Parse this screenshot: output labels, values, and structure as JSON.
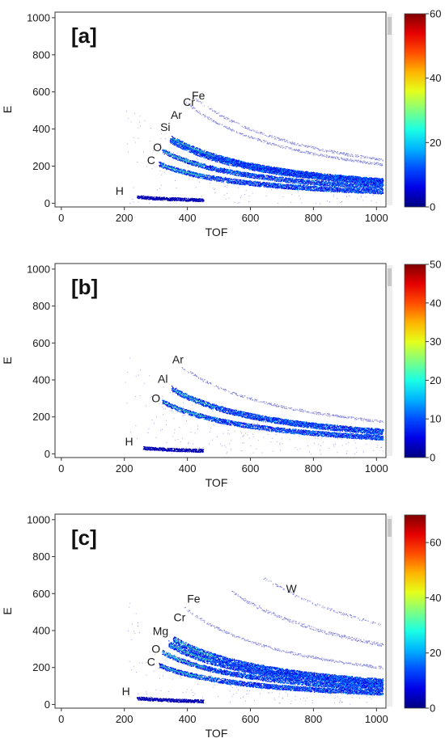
{
  "chart_data": [
    {
      "type": "heatmap",
      "panel_label": "[a]",
      "xlabel": "TOF",
      "ylabel": "E",
      "xlim": [
        -20,
        1030
      ],
      "ylim": [
        -20,
        1030
      ],
      "x_ticks": [
        0,
        200,
        400,
        600,
        800,
        1000
      ],
      "y_ticks": [
        0,
        200,
        400,
        600,
        800,
        1000
      ],
      "colorbar": {
        "min": 0,
        "max": 60,
        "ticks": [
          0,
          20,
          40,
          60
        ]
      },
      "element_labels": [
        {
          "text": "H",
          "x": 185,
          "y": 45
        },
        {
          "text": "C",
          "x": 285,
          "y": 210
        },
        {
          "text": "O",
          "x": 305,
          "y": 280
        },
        {
          "text": "Si",
          "x": 330,
          "y": 390
        },
        {
          "text": "Ar",
          "x": 365,
          "y": 455
        },
        {
          "text": "Cr",
          "x": 405,
          "y": 525
        },
        {
          "text": "Fe",
          "x": 435,
          "y": 560
        }
      ],
      "tracks": [
        {
          "c": 8500,
          "x0": 240,
          "x1": 450,
          "w": 4,
          "d": 1.0
        },
        {
          "c": 66000,
          "x0": 310,
          "x1": 1020,
          "w": 6,
          "d": 1.3
        },
        {
          "c": 91000,
          "x0": 320,
          "x1": 1020,
          "w": 6,
          "d": 1.3
        },
        {
          "c": 118000,
          "x0": 345,
          "x1": 1020,
          "w": 7,
          "d": 1.8
        },
        {
          "c": 123000,
          "x0": 350,
          "x1": 1020,
          "w": 7,
          "d": 1.8
        },
        {
          "c": 215000,
          "x0": 390,
          "x1": 1020,
          "w": 3,
          "d": 0.35
        },
        {
          "c": 240000,
          "x0": 420,
          "x1": 1020,
          "w": 3,
          "d": 0.35
        }
      ]
    },
    {
      "type": "heatmap",
      "panel_label": "[b]",
      "xlabel": "TOF",
      "ylabel": "E",
      "xlim": [
        -20,
        1030
      ],
      "ylim": [
        -20,
        1030
      ],
      "x_ticks": [
        0,
        200,
        400,
        600,
        800,
        1000
      ],
      "y_ticks": [
        0,
        200,
        400,
        600,
        800,
        1000
      ],
      "colorbar": {
        "min": 0,
        "max": 50,
        "ticks": [
          0,
          10,
          20,
          30,
          40,
          50
        ]
      },
      "element_labels": [
        {
          "text": "H",
          "x": 215,
          "y": 45
        },
        {
          "text": "O",
          "x": 300,
          "y": 280
        },
        {
          "text": "Al",
          "x": 322,
          "y": 385
        },
        {
          "text": "Ar",
          "x": 370,
          "y": 490
        }
      ],
      "tracks": [
        {
          "c": 8500,
          "x0": 260,
          "x1": 450,
          "w": 4,
          "d": 1.0
        },
        {
          "c": 91000,
          "x0": 320,
          "x1": 1020,
          "w": 6,
          "d": 1.4
        },
        {
          "c": 124000,
          "x0": 350,
          "x1": 1020,
          "w": 7,
          "d": 1.9
        },
        {
          "c": 180000,
          "x0": 380,
          "x1": 1020,
          "w": 3,
          "d": 0.3
        }
      ]
    },
    {
      "type": "heatmap",
      "panel_label": "[c]",
      "xlabel": "TOF",
      "ylabel": "E",
      "xlim": [
        -20,
        1030
      ],
      "ylim": [
        -20,
        1030
      ],
      "x_ticks": [
        0,
        200,
        400,
        600,
        800,
        1000
      ],
      "y_ticks": [
        0,
        200,
        400,
        600,
        800,
        1000
      ],
      "colorbar": {
        "min": 0,
        "max": 70,
        "ticks": [
          0,
          20,
          40,
          60
        ]
      },
      "element_labels": [
        {
          "text": "H",
          "x": 205,
          "y": 50
        },
        {
          "text": "C",
          "x": 285,
          "y": 210
        },
        {
          "text": "O",
          "x": 300,
          "y": 280
        },
        {
          "text": "Mg",
          "x": 315,
          "y": 375
        },
        {
          "text": "Cr",
          "x": 375,
          "y": 450
        },
        {
          "text": "Fe",
          "x": 420,
          "y": 550
        },
        {
          "text": "W",
          "x": 730,
          "y": 605
        }
      ],
      "tracks": [
        {
          "c": 8500,
          "x0": 240,
          "x1": 450,
          "w": 4,
          "d": 1.0
        },
        {
          "c": 66000,
          "x0": 310,
          "x1": 1020,
          "w": 6,
          "d": 1.3
        },
        {
          "c": 91000,
          "x0": 320,
          "x1": 1020,
          "w": 6,
          "d": 1.3
        },
        {
          "c": 112000,
          "x0": 340,
          "x1": 1020,
          "w": 8,
          "d": 2.0
        },
        {
          "c": 126000,
          "x0": 355,
          "x1": 1020,
          "w": 8,
          "d": 2.0
        },
        {
          "c": 205000,
          "x0": 390,
          "x1": 1020,
          "w": 3,
          "d": 0.35
        },
        {
          "c": 330000,
          "x0": 540,
          "x1": 1020,
          "w": 4,
          "d": 0.5
        },
        {
          "c": 440000,
          "x0": 640,
          "x1": 1020,
          "w": 3,
          "d": 0.3
        }
      ]
    }
  ]
}
